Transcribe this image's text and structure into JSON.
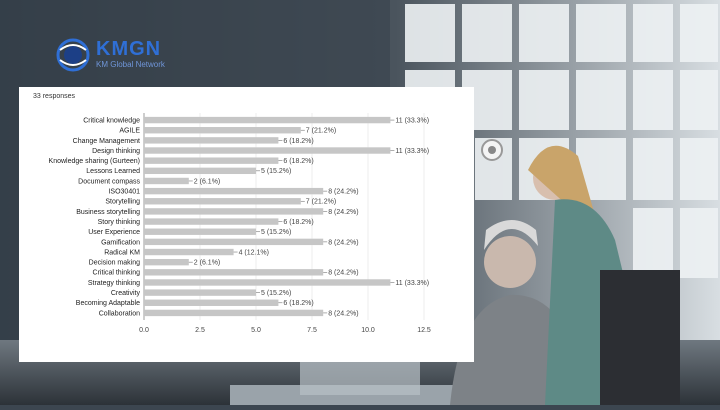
{
  "logo": {
    "title": "KMGN",
    "subtitle": "KM Global Network"
  },
  "survey": {
    "responses": "33 responses"
  },
  "colors": {
    "bar": "#c6c6c6",
    "text": "#222222",
    "label": "#444444",
    "axis": "#888888",
    "brand": "#2f6fd6"
  },
  "chart_data": {
    "type": "bar",
    "orientation": "horizontal",
    "categories": [
      "Critical knowledge",
      "AGILE",
      "Change Management",
      "Design thinking",
      "Knowledge sharing (Gurteen)",
      "Lessons Learned",
      "Document compass",
      "ISO30401",
      "Storytelling",
      "Business storytelling",
      "Story thinking",
      "User Experience",
      "Gamification",
      "Radical KM",
      "Decision making",
      "Critical thinking",
      "Strategy thinking",
      "Creativity",
      "Becoming Adaptable",
      "Collaboration"
    ],
    "values": [
      11,
      7,
      6,
      11,
      6,
      5,
      2,
      8,
      7,
      8,
      6,
      5,
      8,
      4,
      2,
      8,
      11,
      5,
      6,
      8
    ],
    "data_labels": [
      "11 (33.3%)",
      "7 (21.2%)",
      "6 (18.2%)",
      "11 (33.3%)",
      "6 (18.2%)",
      "5 (15.2%)",
      "2 (6.1%)",
      "8 (24.2%)",
      "7 (21.2%)",
      "8 (24.2%)",
      "6 (18.2%)",
      "5 (15.2%)",
      "8 (24.2%)",
      "4 (12.1%)",
      "2 (6.1%)",
      "8 (24.2%)",
      "11 (33.3%)",
      "5 (15.2%)",
      "6 (18.2%)",
      "8 (24.2%)"
    ],
    "xticks": [
      "0.0",
      "2.5",
      "5.0",
      "7.5",
      "10.0",
      "12.5"
    ],
    "xlim": [
      0,
      12.5
    ],
    "grid": true,
    "title": "",
    "xlabel": "",
    "ylabel": ""
  }
}
